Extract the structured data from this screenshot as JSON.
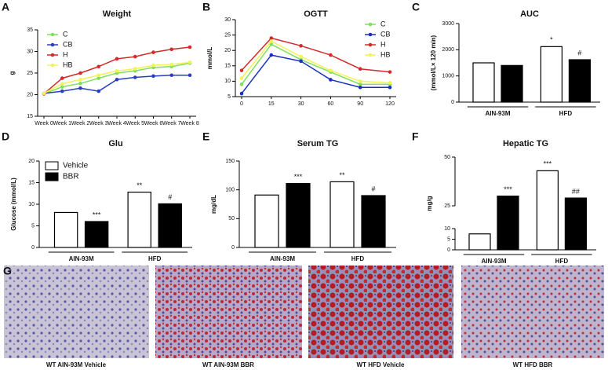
{
  "chart_data": [
    {
      "panel": "A",
      "type": "line",
      "title": "Weight",
      "ylabel": "g",
      "categories": [
        "Week 0",
        "Week 1",
        "Week 2",
        "Week 3",
        "Week 4",
        "Week 5",
        "Week 6",
        "Week 7",
        "Week 8"
      ],
      "ylim": [
        15,
        35
      ],
      "yticks": [
        15,
        20,
        25,
        30,
        35
      ],
      "legend": "upper left",
      "series": [
        {
          "name": "C",
          "color": "#7fe05a",
          "values": [
            20.2,
            21.8,
            22.6,
            23.8,
            25,
            25.5,
            26.3,
            26.5,
            27.3
          ]
        },
        {
          "name": "CB",
          "color": "#2a3fc0",
          "values": [
            20.3,
            20.8,
            21.5,
            20.8,
            23.5,
            24,
            24.3,
            24.5,
            24.5
          ]
        },
        {
          "name": "H",
          "color": "#d42a2a",
          "values": [
            20.2,
            23.8,
            25,
            26.5,
            28.3,
            28.8,
            29.8,
            30.5,
            31
          ]
        },
        {
          "name": "HB",
          "color": "#f2f25a",
          "values": [
            20.3,
            22.5,
            23.5,
            24.5,
            25.5,
            26,
            26.8,
            27,
            27.5
          ]
        }
      ]
    },
    {
      "panel": "B",
      "type": "line",
      "title": "OGTT",
      "ylabel": "mmol/L",
      "categories": [
        "0",
        "15",
        "30",
        "60",
        "90",
        "120"
      ],
      "ylim": [
        5,
        30
      ],
      "yticks": [
        5,
        10,
        15,
        20,
        25,
        30
      ],
      "legend": "upper right",
      "series": [
        {
          "name": "C",
          "color": "#7fe05a",
          "values": [
            9,
            22,
            17,
            13,
            9,
            9
          ]
        },
        {
          "name": "CB",
          "color": "#1a2fc0",
          "values": [
            6,
            18.5,
            16.5,
            10.5,
            8,
            8
          ]
        },
        {
          "name": "H",
          "color": "#d42a2a",
          "values": [
            13.5,
            24,
            21.5,
            18.5,
            14,
            13
          ]
        },
        {
          "name": "HB",
          "color": "#f2f25a",
          "values": [
            11,
            23,
            18,
            13.5,
            10,
            9.5
          ]
        }
      ]
    },
    {
      "panel": "C",
      "type": "bar",
      "title": "AUC",
      "ylabel": "(mmol/L× 120 min)",
      "groups": [
        "AIN-93M",
        "HFD"
      ],
      "ylim": [
        0,
        3000
      ],
      "yticks": [
        0,
        1000,
        2000,
        3000
      ],
      "series": [
        {
          "color": "#ffffff",
          "values": [
            1500,
            2120
          ],
          "annotations": [
            null,
            "*"
          ]
        },
        {
          "color": "#000000",
          "values": [
            1400,
            1620
          ],
          "annotations": [
            null,
            "#"
          ]
        }
      ]
    },
    {
      "panel": "D",
      "type": "bar",
      "title": "Glu",
      "ylabel": "Glucose (mmol/L)",
      "groups": [
        "AIN-93M",
        "HFD"
      ],
      "ylim": [
        0,
        20
      ],
      "yticks": [
        0,
        5,
        10,
        15,
        20
      ],
      "legend": "upper left",
      "series": [
        {
          "name": "Vehicle",
          "color": "#ffffff",
          "values": [
            8.1,
            12.8
          ],
          "annotations": [
            null,
            "**"
          ]
        },
        {
          "name": "BBR",
          "color": "#000000",
          "values": [
            6,
            10.1
          ],
          "annotations": [
            "***",
            "#"
          ]
        }
      ]
    },
    {
      "panel": "E",
      "type": "bar",
      "title": "Serum TG",
      "ylabel": "mg/dL",
      "groups": [
        "AIN-93M",
        "HFD"
      ],
      "ylim": [
        0,
        150
      ],
      "yticks": [
        0,
        50,
        100,
        150
      ],
      "series": [
        {
          "color": "#ffffff",
          "values": [
            91,
            114
          ],
          "annotations": [
            null,
            "**"
          ]
        },
        {
          "color": "#000000",
          "values": [
            111,
            90
          ],
          "annotations": [
            "***",
            "#"
          ]
        }
      ]
    },
    {
      "panel": "F",
      "type": "bar",
      "title": "Hepatic TG",
      "ylabel": "mg/g",
      "groups": [
        "AIN-93M",
        "HFD"
      ],
      "ylim": [
        0,
        50
      ],
      "yticks": [
        0,
        5,
        10,
        25,
        50
      ],
      "axis_break": [
        10,
        25
      ],
      "series": [
        {
          "color": "#ffffff",
          "values": [
            7.5,
            43
          ],
          "annotations": [
            null,
            "***"
          ]
        },
        {
          "color": "#000000",
          "values": [
            30,
            29
          ],
          "annotations": [
            "***",
            "##"
          ]
        }
      ]
    }
  ],
  "images": {
    "panel": "G",
    "captions": [
      "WT AIN-93M Vehicle",
      "WT AIN-93M BBR",
      "WT HFD Vehicle",
      "WT HFD BBR"
    ]
  }
}
